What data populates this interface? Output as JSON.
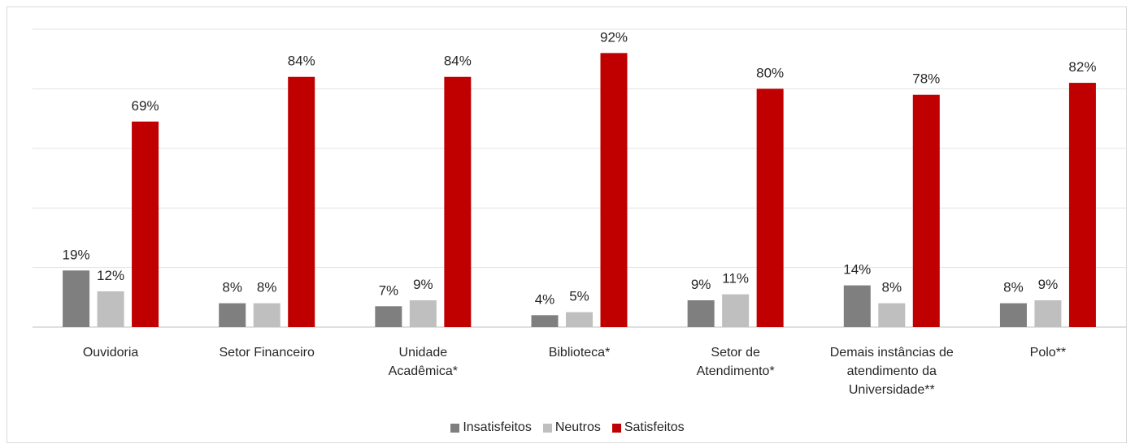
{
  "chart_data": {
    "type": "bar",
    "categories": [
      "Ouvidoria",
      "Setor Financeiro",
      "Unidade Acadêmica*",
      "Biblioteca*",
      "Setor de Atendimento*",
      "Demais instâncias de atendimento da Universidade**",
      "Polo**"
    ],
    "series": [
      {
        "name": "Insatisfeitos",
        "color": "#7f7f7f",
        "values": [
          19,
          8,
          7,
          4,
          9,
          14,
          8
        ],
        "value_labels": [
          "19%",
          "8%",
          "7%",
          "4%",
          "9%",
          "14%",
          "8%"
        ]
      },
      {
        "name": "Neutros",
        "color": "#bfbfbf",
        "values": [
          12,
          8,
          9,
          5,
          11,
          8,
          9
        ],
        "value_labels": [
          "12%",
          "8%",
          "9%",
          "5%",
          "11%",
          "8%",
          "9%"
        ]
      },
      {
        "name": "Satisfeitos",
        "color": "#c00000",
        "values": [
          69,
          84,
          84,
          92,
          80,
          78,
          82
        ],
        "value_labels": [
          "69%",
          "84%",
          "84%",
          "92%",
          "80%",
          "78%",
          "82%"
        ]
      }
    ],
    "ylim": [
      0,
      100
    ],
    "yticks": [
      0,
      20,
      40,
      60,
      80,
      100
    ],
    "grid": true,
    "legend": "bottom"
  }
}
